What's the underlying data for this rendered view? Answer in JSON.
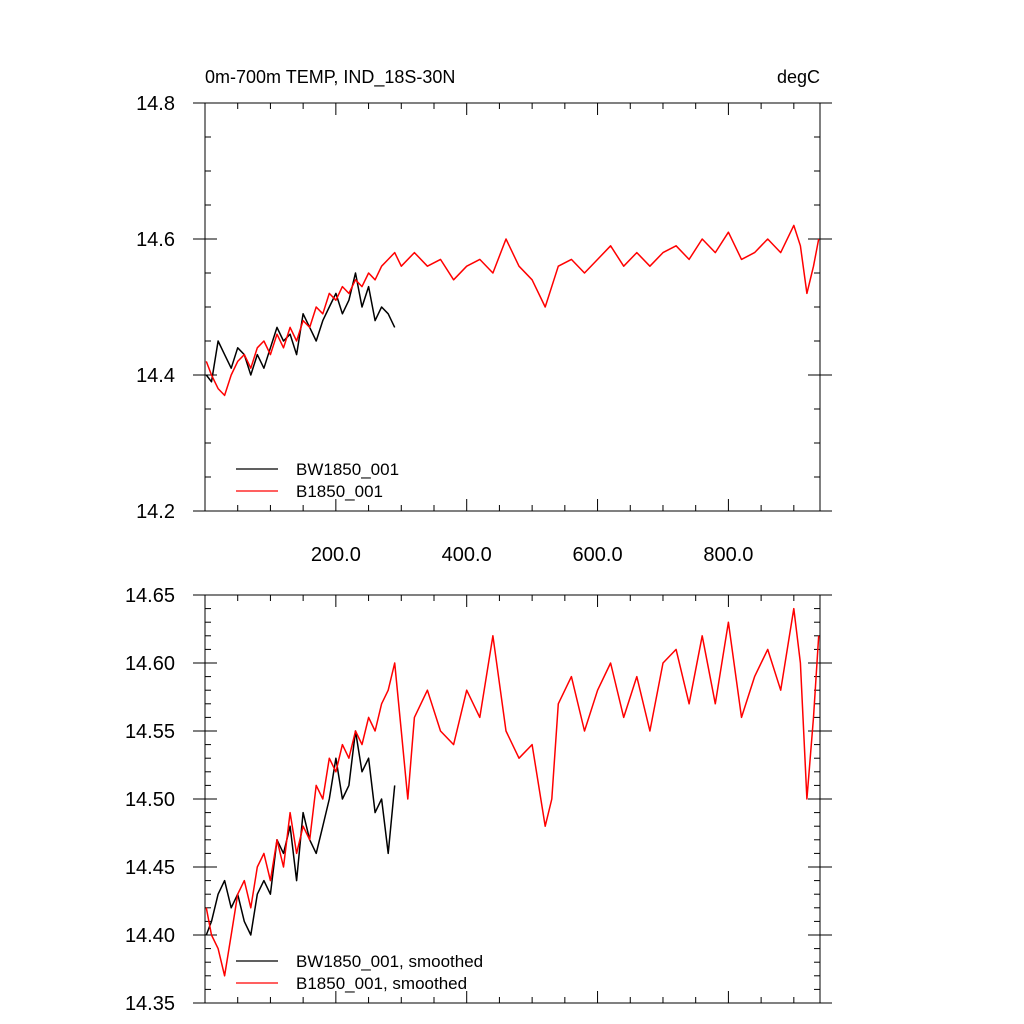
{
  "chart_data": [
    {
      "type": "line",
      "title": "0m-700m TEMP, IND_18S-30N",
      "units": "degC",
      "xlim": [
        0,
        940
      ],
      "ylim": [
        14.2,
        14.8
      ],
      "x_ticks": [
        {
          "value": 200,
          "label": "200.0"
        },
        {
          "value": 400,
          "label": "400.0"
        },
        {
          "value": 600,
          "label": "600.0"
        },
        {
          "value": 800,
          "label": "800.0"
        }
      ],
      "y_ticks": [
        {
          "value": 14.2,
          "label": "14.2"
        },
        {
          "value": 14.4,
          "label": "14.4"
        },
        {
          "value": 14.6,
          "label": "14.6"
        },
        {
          "value": 14.8,
          "label": "14.8"
        }
      ],
      "legend_position": "bottom-left",
      "series": [
        {
          "name": "BW1850_001",
          "color": "#000000",
          "x": [
            2,
            10,
            20,
            30,
            40,
            50,
            60,
            70,
            80,
            90,
            100,
            110,
            120,
            130,
            140,
            150,
            160,
            170,
            180,
            190,
            200,
            210,
            220,
            230,
            240,
            250,
            260,
            270,
            280,
            290
          ],
          "values": [
            14.4,
            14.39,
            14.45,
            14.43,
            14.41,
            14.44,
            14.43,
            14.4,
            14.43,
            14.41,
            14.44,
            14.47,
            14.45,
            14.46,
            14.43,
            14.49,
            14.47,
            14.45,
            14.48,
            14.5,
            14.52,
            14.49,
            14.51,
            14.55,
            14.5,
            14.53,
            14.48,
            14.5,
            14.49,
            14.47
          ]
        },
        {
          "name": "B1850_001",
          "color": "#ff0000",
          "x": [
            2,
            10,
            20,
            30,
            40,
            50,
            60,
            70,
            80,
            90,
            100,
            110,
            120,
            130,
            140,
            150,
            160,
            170,
            180,
            190,
            200,
            210,
            220,
            230,
            240,
            250,
            260,
            270,
            280,
            290,
            300,
            320,
            340,
            360,
            380,
            400,
            420,
            440,
            460,
            480,
            500,
            520,
            540,
            560,
            580,
            600,
            620,
            640,
            660,
            680,
            700,
            720,
            740,
            760,
            780,
            800,
            820,
            840,
            860,
            880,
            900,
            910,
            920,
            930,
            938
          ],
          "values": [
            14.42,
            14.4,
            14.38,
            14.37,
            14.4,
            14.42,
            14.43,
            14.41,
            14.44,
            14.45,
            14.43,
            14.46,
            14.44,
            14.47,
            14.45,
            14.48,
            14.47,
            14.5,
            14.49,
            14.52,
            14.51,
            14.53,
            14.52,
            14.54,
            14.53,
            14.55,
            14.54,
            14.56,
            14.57,
            14.58,
            14.56,
            14.58,
            14.56,
            14.57,
            14.54,
            14.56,
            14.57,
            14.55,
            14.6,
            14.56,
            14.54,
            14.5,
            14.56,
            14.57,
            14.55,
            14.57,
            14.59,
            14.56,
            14.58,
            14.56,
            14.58,
            14.59,
            14.57,
            14.6,
            14.58,
            14.61,
            14.57,
            14.58,
            14.6,
            14.58,
            14.62,
            14.59,
            14.52,
            14.56,
            14.6
          ]
        }
      ]
    },
    {
      "type": "line",
      "xlim": [
        0,
        940
      ],
      "ylim": [
        14.35,
        14.65
      ],
      "y_ticks": [
        {
          "value": 14.35,
          "label": "14.35"
        },
        {
          "value": 14.4,
          "label": "14.40"
        },
        {
          "value": 14.45,
          "label": "14.45"
        },
        {
          "value": 14.5,
          "label": "14.50"
        },
        {
          "value": 14.55,
          "label": "14.55"
        },
        {
          "value": 14.6,
          "label": "14.60"
        },
        {
          "value": 14.65,
          "label": "14.65"
        }
      ],
      "legend_position": "bottom-left",
      "series": [
        {
          "name": "BW1850_001, smoothed",
          "color": "#000000",
          "x": [
            2,
            10,
            20,
            30,
            40,
            50,
            60,
            70,
            80,
            90,
            100,
            110,
            120,
            130,
            140,
            150,
            160,
            170,
            180,
            190,
            200,
            210,
            220,
            230,
            240,
            250,
            260,
            270,
            280,
            290
          ],
          "values": [
            14.4,
            14.41,
            14.43,
            14.44,
            14.42,
            14.43,
            14.41,
            14.4,
            14.43,
            14.44,
            14.43,
            14.47,
            14.46,
            14.48,
            14.44,
            14.49,
            14.47,
            14.46,
            14.48,
            14.5,
            14.53,
            14.5,
            14.51,
            14.55,
            14.52,
            14.53,
            14.49,
            14.5,
            14.46,
            14.51
          ]
        },
        {
          "name": "B1850_001, smoothed",
          "color": "#ff0000",
          "x": [
            2,
            10,
            20,
            30,
            40,
            50,
            60,
            70,
            80,
            90,
            100,
            110,
            120,
            130,
            140,
            150,
            160,
            170,
            180,
            190,
            200,
            210,
            220,
            230,
            240,
            250,
            260,
            270,
            280,
            290,
            300,
            310,
            320,
            340,
            360,
            380,
            400,
            420,
            440,
            460,
            480,
            500,
            520,
            530,
            540,
            560,
            580,
            600,
            620,
            640,
            660,
            680,
            700,
            720,
            740,
            760,
            780,
            800,
            820,
            840,
            860,
            880,
            900,
            910,
            920,
            930,
            938
          ],
          "values": [
            14.42,
            14.4,
            14.39,
            14.37,
            14.4,
            14.43,
            14.44,
            14.42,
            14.45,
            14.46,
            14.44,
            14.47,
            14.45,
            14.49,
            14.46,
            14.48,
            14.47,
            14.51,
            14.5,
            14.53,
            14.52,
            14.54,
            14.53,
            14.55,
            14.54,
            14.56,
            14.55,
            14.57,
            14.58,
            14.6,
            14.55,
            14.5,
            14.56,
            14.58,
            14.55,
            14.54,
            14.58,
            14.56,
            14.62,
            14.55,
            14.53,
            14.54,
            14.48,
            14.5,
            14.57,
            14.59,
            14.55,
            14.58,
            14.6,
            14.56,
            14.59,
            14.55,
            14.6,
            14.61,
            14.57,
            14.62,
            14.57,
            14.63,
            14.56,
            14.59,
            14.61,
            14.58,
            14.64,
            14.6,
            14.5,
            14.56,
            14.62
          ]
        }
      ]
    }
  ]
}
